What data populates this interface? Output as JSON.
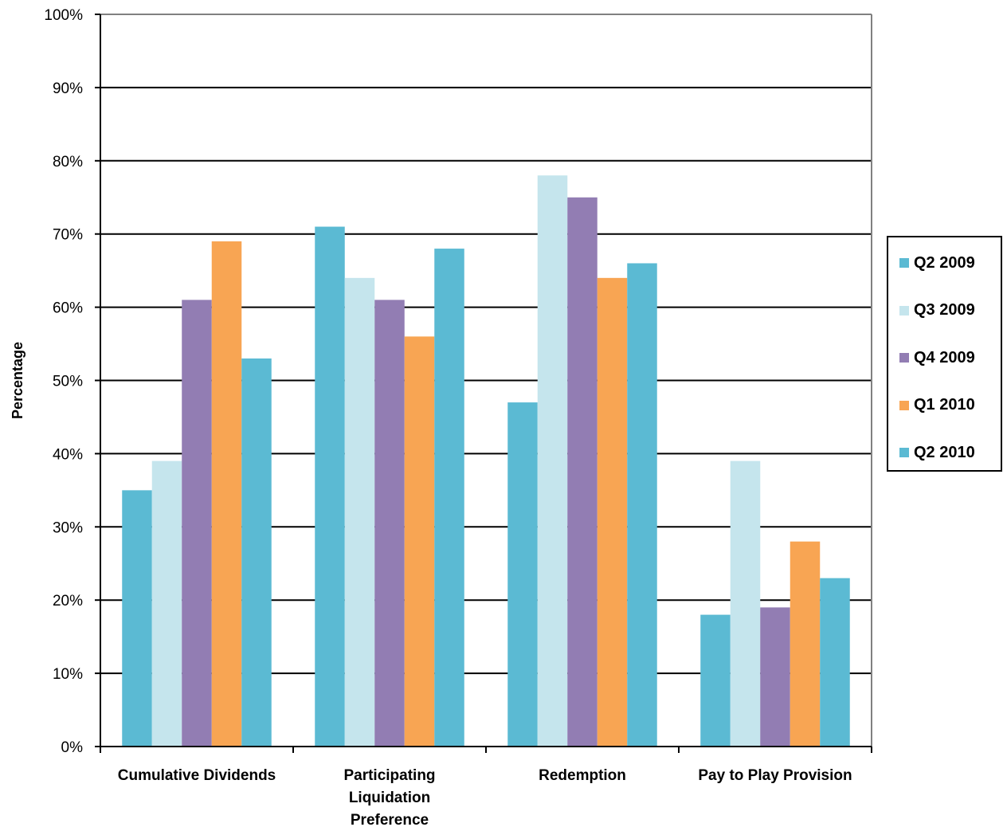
{
  "chart_data": {
    "type": "bar",
    "title": "",
    "xlabel": "",
    "ylabel": "Percentage",
    "ylim": [
      0,
      100
    ],
    "y_ticks": [
      "0%",
      "10%",
      "20%",
      "30%",
      "40%",
      "50%",
      "60%",
      "70%",
      "80%",
      "90%",
      "100%"
    ],
    "grid": true,
    "legend_position": "right",
    "categories": [
      [
        "Cumulative Dividends"
      ],
      [
        "Participating",
        "Liquidation",
        "Preference"
      ],
      [
        "Redemption"
      ],
      [
        "Pay to Play Provision"
      ]
    ],
    "series": [
      {
        "name": "Q2 2009",
        "color": "#5bbad3",
        "values": [
          35,
          71,
          47,
          18
        ]
      },
      {
        "name": "Q3 2009",
        "color": "#c5e5ed",
        "values": [
          39,
          64,
          78,
          39
        ]
      },
      {
        "name": "Q4 2009",
        "color": "#927db3",
        "values": [
          61,
          61,
          75,
          19
        ]
      },
      {
        "name": "Q1 2010",
        "color": "#f8a553",
        "values": [
          69,
          56,
          64,
          28
        ]
      },
      {
        "name": "Q2 2010",
        "color": "#5bbad3",
        "values": [
          53,
          68,
          66,
          23
        ]
      }
    ]
  }
}
